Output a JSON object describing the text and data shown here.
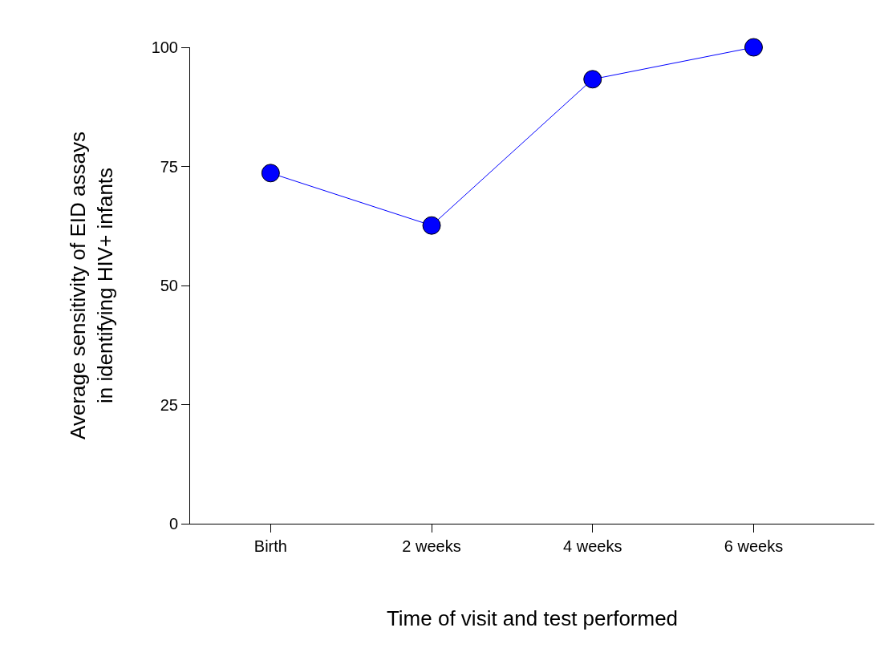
{
  "chart_data": {
    "type": "line",
    "xlabel": "Time of visit and test performed",
    "ylabel": "Average sensitivity of EID assays\nin identifying HIV+ infants",
    "categories": [
      "Birth",
      "2 weeks",
      "4 weeks",
      "6 weeks"
    ],
    "series": [
      {
        "color": "#0000ff",
        "values": [
          73.6,
          62.6,
          93.3,
          100
        ]
      }
    ],
    "ylim": [
      0,
      100
    ],
    "yticks": [
      0,
      25,
      50,
      75,
      100
    ],
    "marker": "circle",
    "line_style": "solid",
    "legend": false
  }
}
